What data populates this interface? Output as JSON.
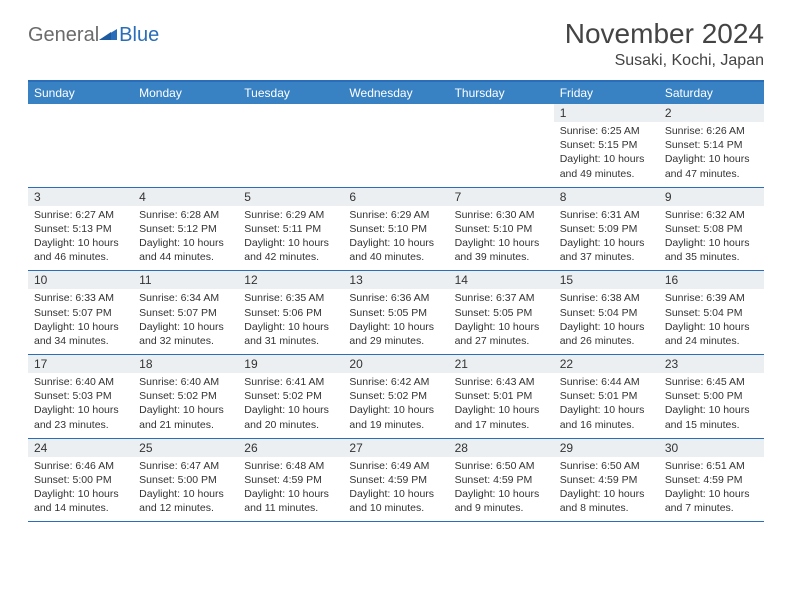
{
  "brand": {
    "text1": "General",
    "text2": "Blue"
  },
  "title": "November 2024",
  "location": "Susaki, Kochi, Japan",
  "colors": {
    "header_bg": "#3882c4",
    "header_border": "#2a6db8",
    "daynum_bg": "#eceff2",
    "text": "#333333",
    "brand_gray": "#6b6b6b",
    "brand_blue": "#2a6db8"
  },
  "day_names": [
    "Sunday",
    "Monday",
    "Tuesday",
    "Wednesday",
    "Thursday",
    "Friday",
    "Saturday"
  ],
  "weeks": [
    [
      {
        "n": "",
        "sr": "",
        "ss": "",
        "dl": ""
      },
      {
        "n": "",
        "sr": "",
        "ss": "",
        "dl": ""
      },
      {
        "n": "",
        "sr": "",
        "ss": "",
        "dl": ""
      },
      {
        "n": "",
        "sr": "",
        "ss": "",
        "dl": ""
      },
      {
        "n": "",
        "sr": "",
        "ss": "",
        "dl": ""
      },
      {
        "n": "1",
        "sr": "Sunrise: 6:25 AM",
        "ss": "Sunset: 5:15 PM",
        "dl": "Daylight: 10 hours and 49 minutes."
      },
      {
        "n": "2",
        "sr": "Sunrise: 6:26 AM",
        "ss": "Sunset: 5:14 PM",
        "dl": "Daylight: 10 hours and 47 minutes."
      }
    ],
    [
      {
        "n": "3",
        "sr": "Sunrise: 6:27 AM",
        "ss": "Sunset: 5:13 PM",
        "dl": "Daylight: 10 hours and 46 minutes."
      },
      {
        "n": "4",
        "sr": "Sunrise: 6:28 AM",
        "ss": "Sunset: 5:12 PM",
        "dl": "Daylight: 10 hours and 44 minutes."
      },
      {
        "n": "5",
        "sr": "Sunrise: 6:29 AM",
        "ss": "Sunset: 5:11 PM",
        "dl": "Daylight: 10 hours and 42 minutes."
      },
      {
        "n": "6",
        "sr": "Sunrise: 6:29 AM",
        "ss": "Sunset: 5:10 PM",
        "dl": "Daylight: 10 hours and 40 minutes."
      },
      {
        "n": "7",
        "sr": "Sunrise: 6:30 AM",
        "ss": "Sunset: 5:10 PM",
        "dl": "Daylight: 10 hours and 39 minutes."
      },
      {
        "n": "8",
        "sr": "Sunrise: 6:31 AM",
        "ss": "Sunset: 5:09 PM",
        "dl": "Daylight: 10 hours and 37 minutes."
      },
      {
        "n": "9",
        "sr": "Sunrise: 6:32 AM",
        "ss": "Sunset: 5:08 PM",
        "dl": "Daylight: 10 hours and 35 minutes."
      }
    ],
    [
      {
        "n": "10",
        "sr": "Sunrise: 6:33 AM",
        "ss": "Sunset: 5:07 PM",
        "dl": "Daylight: 10 hours and 34 minutes."
      },
      {
        "n": "11",
        "sr": "Sunrise: 6:34 AM",
        "ss": "Sunset: 5:07 PM",
        "dl": "Daylight: 10 hours and 32 minutes."
      },
      {
        "n": "12",
        "sr": "Sunrise: 6:35 AM",
        "ss": "Sunset: 5:06 PM",
        "dl": "Daylight: 10 hours and 31 minutes."
      },
      {
        "n": "13",
        "sr": "Sunrise: 6:36 AM",
        "ss": "Sunset: 5:05 PM",
        "dl": "Daylight: 10 hours and 29 minutes."
      },
      {
        "n": "14",
        "sr": "Sunrise: 6:37 AM",
        "ss": "Sunset: 5:05 PM",
        "dl": "Daylight: 10 hours and 27 minutes."
      },
      {
        "n": "15",
        "sr": "Sunrise: 6:38 AM",
        "ss": "Sunset: 5:04 PM",
        "dl": "Daylight: 10 hours and 26 minutes."
      },
      {
        "n": "16",
        "sr": "Sunrise: 6:39 AM",
        "ss": "Sunset: 5:04 PM",
        "dl": "Daylight: 10 hours and 24 minutes."
      }
    ],
    [
      {
        "n": "17",
        "sr": "Sunrise: 6:40 AM",
        "ss": "Sunset: 5:03 PM",
        "dl": "Daylight: 10 hours and 23 minutes."
      },
      {
        "n": "18",
        "sr": "Sunrise: 6:40 AM",
        "ss": "Sunset: 5:02 PM",
        "dl": "Daylight: 10 hours and 21 minutes."
      },
      {
        "n": "19",
        "sr": "Sunrise: 6:41 AM",
        "ss": "Sunset: 5:02 PM",
        "dl": "Daylight: 10 hours and 20 minutes."
      },
      {
        "n": "20",
        "sr": "Sunrise: 6:42 AM",
        "ss": "Sunset: 5:02 PM",
        "dl": "Daylight: 10 hours and 19 minutes."
      },
      {
        "n": "21",
        "sr": "Sunrise: 6:43 AM",
        "ss": "Sunset: 5:01 PM",
        "dl": "Daylight: 10 hours and 17 minutes."
      },
      {
        "n": "22",
        "sr": "Sunrise: 6:44 AM",
        "ss": "Sunset: 5:01 PM",
        "dl": "Daylight: 10 hours and 16 minutes."
      },
      {
        "n": "23",
        "sr": "Sunrise: 6:45 AM",
        "ss": "Sunset: 5:00 PM",
        "dl": "Daylight: 10 hours and 15 minutes."
      }
    ],
    [
      {
        "n": "24",
        "sr": "Sunrise: 6:46 AM",
        "ss": "Sunset: 5:00 PM",
        "dl": "Daylight: 10 hours and 14 minutes."
      },
      {
        "n": "25",
        "sr": "Sunrise: 6:47 AM",
        "ss": "Sunset: 5:00 PM",
        "dl": "Daylight: 10 hours and 12 minutes."
      },
      {
        "n": "26",
        "sr": "Sunrise: 6:48 AM",
        "ss": "Sunset: 4:59 PM",
        "dl": "Daylight: 10 hours and 11 minutes."
      },
      {
        "n": "27",
        "sr": "Sunrise: 6:49 AM",
        "ss": "Sunset: 4:59 PM",
        "dl": "Daylight: 10 hours and 10 minutes."
      },
      {
        "n": "28",
        "sr": "Sunrise: 6:50 AM",
        "ss": "Sunset: 4:59 PM",
        "dl": "Daylight: 10 hours and 9 minutes."
      },
      {
        "n": "29",
        "sr": "Sunrise: 6:50 AM",
        "ss": "Sunset: 4:59 PM",
        "dl": "Daylight: 10 hours and 8 minutes."
      },
      {
        "n": "30",
        "sr": "Sunrise: 6:51 AM",
        "ss": "Sunset: 4:59 PM",
        "dl": "Daylight: 10 hours and 7 minutes."
      }
    ]
  ]
}
